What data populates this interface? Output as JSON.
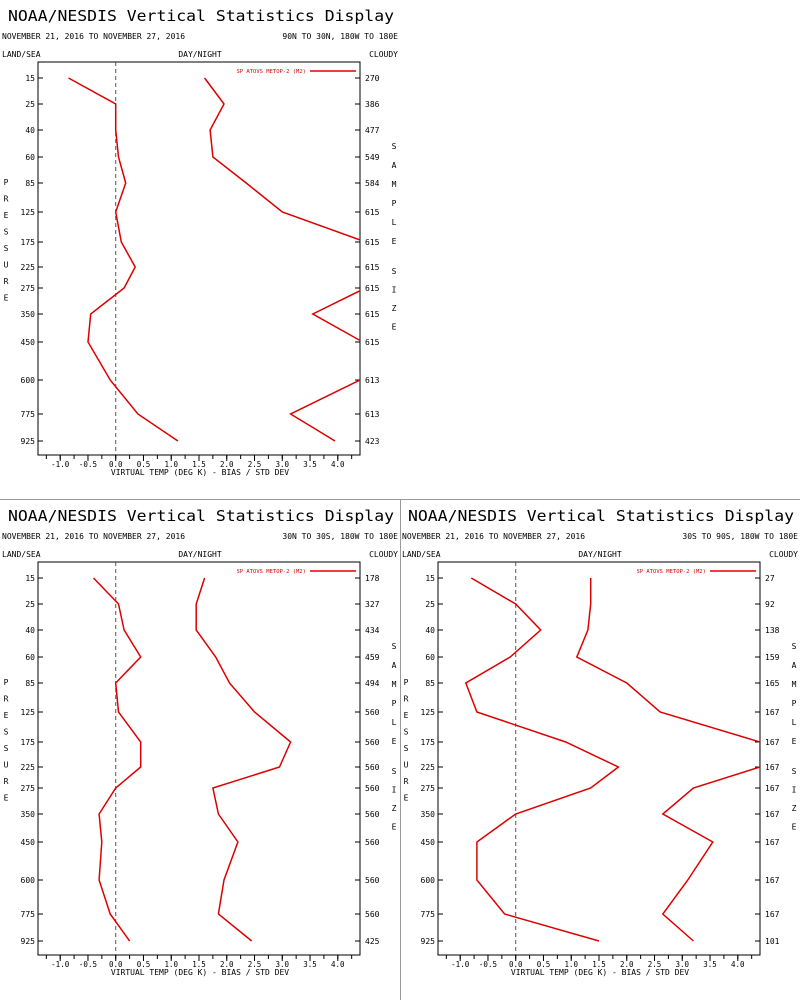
{
  "panels": [
    {
      "title": "NOAA/NESDIS Vertical Statistics Display",
      "dates": "NOVEMBER 21, 2016 TO NOVEMBER 27, 2016",
      "region": "90N TO 30N, 180W TO 180E",
      "left_label": "LAND/SEA",
      "center_label": "DAY/NIGHT",
      "right_label": "CLOUDY",
      "pressure_label": "PRESSURE",
      "sample_label": "SAMPLE SIZE",
      "legend": "SP ATOVS METOP-2 (M2)",
      "xlabel": "VIRTUAL TEMP (DEG K) - BIAS / STD DEV",
      "xticks": [
        "-1.0",
        "-0.5",
        "0.0",
        "0.5",
        "1.0",
        "1.5",
        "2.0",
        "2.5",
        "3.0",
        "3.5",
        "4.0"
      ],
      "yticks": [
        "15",
        "25",
        "40",
        "60",
        "85",
        "125",
        "175",
        "225",
        "275",
        "350",
        "450",
        "600",
        "775",
        "925"
      ],
      "samples": [
        "270",
        "386",
        "477",
        "549",
        "584",
        "615",
        "615",
        "615",
        "615",
        "615",
        "615",
        "613",
        "613",
        "423"
      ]
    },
    {
      "title": "NOAA/NESDIS Vertical Statistics Display",
      "dates": "NOVEMBER 21, 2016 TO NOVEMBER 27, 2016",
      "region": "30N TO 30S, 180W TO 180E",
      "left_label": "LAND/SEA",
      "center_label": "DAY/NIGHT",
      "right_label": "CLOUDY",
      "pressure_label": "PRESSURE",
      "sample_label": "SAMPLE SIZE",
      "legend": "SP ATOVS METOP-2 (M2)",
      "xlabel": "VIRTUAL TEMP (DEG K) - BIAS / STD DEV",
      "xticks": [
        "-1.0",
        "-0.5",
        "0.0",
        "0.5",
        "1.0",
        "1.5",
        "2.0",
        "2.5",
        "3.0",
        "3.5",
        "4.0"
      ],
      "yticks": [
        "15",
        "25",
        "40",
        "60",
        "85",
        "125",
        "175",
        "225",
        "275",
        "350",
        "450",
        "600",
        "775",
        "925"
      ],
      "samples": [
        "178",
        "327",
        "434",
        "459",
        "494",
        "560",
        "560",
        "560",
        "560",
        "560",
        "560",
        "560",
        "560",
        "425"
      ]
    },
    {
      "title": "NOAA/NESDIS Vertical Statistics Display",
      "dates": "NOVEMBER 21, 2016 TO NOVEMBER 27, 2016",
      "region": "30S TO 90S, 180W TO 180E",
      "left_label": "LAND/SEA",
      "center_label": "DAY/NIGHT",
      "right_label": "CLOUDY",
      "pressure_label": "PRESSURE",
      "sample_label": "SAMPLE SIZE",
      "legend": "SP ATOVS METOP-2 (M2)",
      "xlabel": "VIRTUAL TEMP (DEG K) - BIAS / STD DEV",
      "xticks": [
        "-1.0",
        "-0.5",
        "0.0",
        "0.5",
        "1.0",
        "1.5",
        "2.0",
        "2.5",
        "3.0",
        "3.5",
        "4.0"
      ],
      "yticks": [
        "15",
        "25",
        "40",
        "60",
        "85",
        "125",
        "175",
        "225",
        "275",
        "350",
        "450",
        "600",
        "775",
        "925"
      ],
      "samples": [
        "27",
        "92",
        "138",
        "159",
        "165",
        "167",
        "167",
        "167",
        "167",
        "167",
        "167",
        "167",
        "167",
        "101"
      ]
    }
  ],
  "colors": {
    "series": "#dd0000",
    "axis": "#000000",
    "zero_line": "#555555"
  },
  "chart_data": [
    {
      "type": "line",
      "title": "NOAA/NESDIS Vertical Statistics Display",
      "subtitle": "NOVEMBER 21, 2016 TO NOVEMBER 27, 2016 — 90N TO 30N, 180W TO 180E",
      "xlabel": "VIRTUAL TEMP (DEG K) - BIAS / STD DEV",
      "ylabel": "PRESSURE",
      "xlim": [
        -1.4,
        4.4
      ],
      "pressure_levels": [
        15,
        25,
        40,
        60,
        85,
        125,
        175,
        225,
        275,
        350,
        450,
        600,
        775,
        925
      ],
      "series": [
        {
          "name": "bias",
          "values": [
            -0.85,
            0.0,
            0.0,
            0.05,
            0.18,
            0.0,
            0.1,
            0.35,
            0.15,
            -0.45,
            -0.5,
            -0.1,
            0.4,
            1.12
          ]
        },
        {
          "name": "std_dev",
          "values": [
            1.6,
            1.95,
            1.7,
            1.75,
            2.35,
            3.0,
            4.5,
            4.45,
            4.5,
            3.55,
            4.45,
            4.4,
            3.15,
            3.95
          ]
        }
      ],
      "sample_size": [
        270,
        386,
        477,
        549,
        584,
        615,
        615,
        615,
        615,
        615,
        615,
        613,
        613,
        423
      ],
      "legend_position": "top-right"
    },
    {
      "type": "line",
      "title": "NOAA/NESDIS Vertical Statistics Display",
      "subtitle": "NOVEMBER 21, 2016 TO NOVEMBER 27, 2016 — 30N TO 30S, 180W TO 180E",
      "xlabel": "VIRTUAL TEMP (DEG K) - BIAS / STD DEV",
      "ylabel": "PRESSURE",
      "xlim": [
        -1.4,
        4.4
      ],
      "pressure_levels": [
        15,
        25,
        40,
        60,
        85,
        125,
        175,
        225,
        275,
        350,
        450,
        600,
        775,
        925
      ],
      "series": [
        {
          "name": "bias",
          "values": [
            -0.4,
            0.05,
            0.15,
            0.45,
            0.0,
            0.05,
            0.45,
            0.45,
            0.0,
            -0.3,
            -0.25,
            -0.3,
            -0.1,
            0.25
          ]
        },
        {
          "name": "std_dev",
          "values": [
            1.6,
            1.45,
            1.45,
            1.8,
            2.05,
            2.5,
            3.15,
            2.95,
            1.75,
            1.85,
            2.2,
            1.95,
            1.85,
            2.45
          ]
        }
      ],
      "sample_size": [
        178,
        327,
        434,
        459,
        494,
        560,
        560,
        560,
        560,
        560,
        560,
        560,
        560,
        425
      ],
      "legend_position": "top-right"
    },
    {
      "type": "line",
      "title": "NOAA/NESDIS Vertical Statistics Display",
      "subtitle": "NOVEMBER 21, 2016 TO NOVEMBER 27, 2016 — 30S TO 90S, 180W TO 180E",
      "xlabel": "VIRTUAL TEMP (DEG K) - BIAS / STD DEV",
      "ylabel": "PRESSURE",
      "xlim": [
        -1.4,
        4.4
      ],
      "pressure_levels": [
        15,
        25,
        40,
        60,
        85,
        125,
        175,
        225,
        275,
        350,
        450,
        600,
        775,
        925
      ],
      "series": [
        {
          "name": "bias",
          "values": [
            -0.8,
            0.0,
            0.45,
            -0.1,
            -0.9,
            -0.7,
            0.9,
            1.85,
            1.35,
            0.0,
            -0.7,
            -0.7,
            -0.2,
            1.5
          ]
        },
        {
          "name": "std_dev",
          "values": [
            1.35,
            1.35,
            1.3,
            1.1,
            2.0,
            2.6,
            4.4,
            4.4,
            3.2,
            2.65,
            3.55,
            3.1,
            2.65,
            3.2
          ]
        }
      ],
      "sample_size": [
        27,
        92,
        138,
        159,
        165,
        167,
        167,
        167,
        167,
        167,
        167,
        167,
        167,
        101
      ],
      "legend_position": "top-right"
    }
  ]
}
